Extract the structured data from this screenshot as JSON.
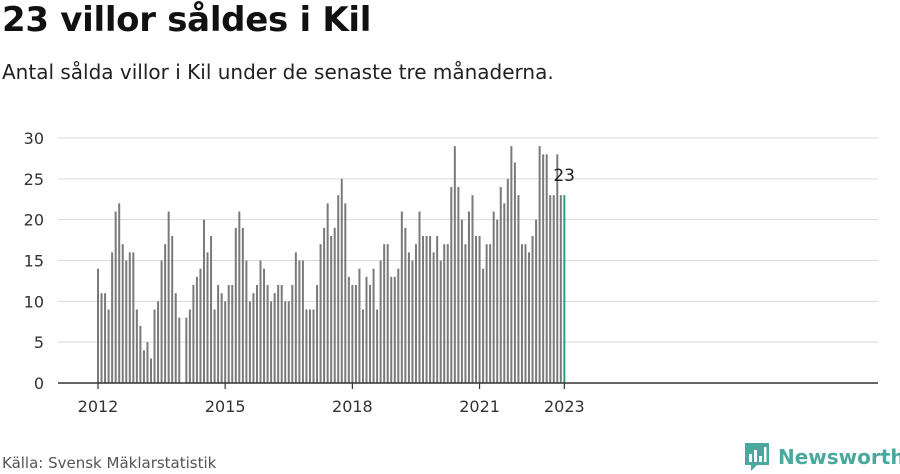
{
  "title": "23 villor såldes i Kil",
  "subtitle": "Antal sålda villor i Kil under de senaste tre månaderna.",
  "source": "Källa: Svensk Mäklarstatistik",
  "brand": {
    "name": "Newsworthy",
    "logo_icon": "bar-chart-speech-bubble-icon",
    "color": "#4aa89e"
  },
  "colors": {
    "bar": "#7a7a7a",
    "highlight": "#2a9d8f",
    "grid": "#d9d9d9",
    "axis": "#333333"
  },
  "chart_data": {
    "type": "bar",
    "title": "23 villor såldes i Kil",
    "subtitle": "Antal sålda villor i Kil under de senaste tre månaderna.",
    "xlabel": "",
    "ylabel": "",
    "ylim": [
      0,
      30
    ],
    "yticks": [
      0,
      5,
      10,
      15,
      20,
      25,
      30
    ],
    "xticks": [
      {
        "label": "2012",
        "date": "2012-01"
      },
      {
        "label": "2015",
        "date": "2015-01"
      },
      {
        "label": "2018",
        "date": "2018-01"
      },
      {
        "label": "2021",
        "date": "2021-01"
      },
      {
        "label": "2023",
        "date": "2023-01"
      }
    ],
    "grid": true,
    "start_month": "2012-01",
    "values": [
      14,
      11,
      11,
      9,
      16,
      21,
      22,
      17,
      15,
      16,
      16,
      9,
      7,
      4,
      5,
      3,
      9,
      10,
      15,
      17,
      21,
      18,
      11,
      8,
      null,
      8,
      9,
      12,
      13,
      14,
      20,
      16,
      18,
      9,
      12,
      11,
      10,
      12,
      12,
      19,
      21,
      19,
      15,
      10,
      11,
      12,
      15,
      14,
      12,
      10,
      11,
      12,
      12,
      10,
      10,
      12,
      16,
      15,
      15,
      9,
      9,
      9,
      12,
      17,
      19,
      22,
      18,
      19,
      23,
      25,
      22,
      13,
      12,
      12,
      14,
      9,
      13,
      12,
      14,
      9,
      15,
      17,
      17,
      13,
      13,
      14,
      21,
      19,
      16,
      15,
      17,
      21,
      18,
      18,
      18,
      16,
      18,
      15,
      17,
      17,
      24,
      29,
      24,
      20,
      17,
      21,
      23,
      18,
      18,
      14,
      17,
      17,
      21,
      20,
      24,
      22,
      25,
      29,
      27,
      23,
      17,
      17,
      16,
      18,
      20,
      29,
      28,
      28,
      23,
      23,
      28,
      23,
      23
    ],
    "highlight_last": true,
    "last_label": "23"
  }
}
